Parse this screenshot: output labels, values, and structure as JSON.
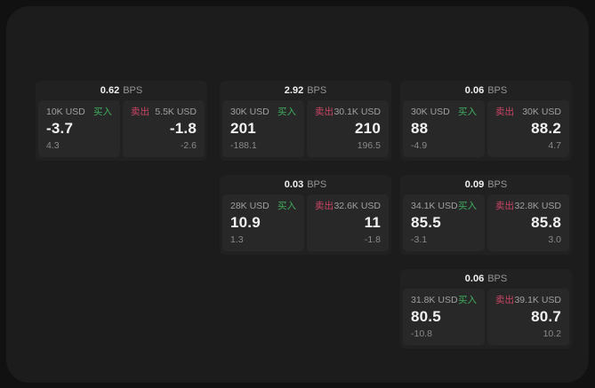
{
  "colors": {
    "page_bg": "#111111",
    "window_bg": "#1c1c1c",
    "card_bg": "#212121",
    "panel_bg": "#282828",
    "buy_green": "#3fae5e",
    "sell_red": "#cb4565"
  },
  "cards": [
    {
      "bps": "0.62",
      "unit": "BPS",
      "buy": {
        "amount": "10K USD",
        "label": "买入",
        "price": "-3.7",
        "change": "4.3"
      },
      "sell": {
        "label": "卖出",
        "amount": "5.5K USD",
        "price": "-1.8",
        "change": "-2.6"
      }
    },
    {
      "bps": "2.92",
      "unit": "BPS",
      "buy": {
        "amount": "30K USD",
        "label": "买入",
        "price": "201",
        "change": "-188.1"
      },
      "sell": {
        "label": "卖出",
        "amount": "30.1K USD",
        "price": "210",
        "change": "196.5"
      }
    },
    {
      "bps": "0.06",
      "unit": "BPS",
      "buy": {
        "amount": "30K USD",
        "label": "买入",
        "price": "88",
        "change": "-4.9"
      },
      "sell": {
        "label": "卖出",
        "amount": "30K USD",
        "price": "88.2",
        "change": "4.7"
      }
    },
    {
      "bps": "0.03",
      "unit": "BPS",
      "buy": {
        "amount": "28K USD",
        "label": "买入",
        "price": "10.9",
        "change": "1.3"
      },
      "sell": {
        "label": "卖出",
        "amount": "32.6K USD",
        "price": "11",
        "change": "-1.8"
      }
    },
    {
      "bps": "0.09",
      "unit": "BPS",
      "buy": {
        "amount": "34.1K USD",
        "label": "买入",
        "price": "85.5",
        "change": "-3.1"
      },
      "sell": {
        "label": "卖出",
        "amount": "32.8K USD",
        "price": "85.8",
        "change": "3.0"
      }
    },
    {
      "bps": "0.06",
      "unit": "BPS",
      "buy": {
        "amount": "31.8K USD",
        "label": "买入",
        "price": "80.5",
        "change": "-10.8"
      },
      "sell": {
        "label": "卖出",
        "amount": "39.1K USD",
        "price": "80.7",
        "change": "10.2"
      }
    }
  ]
}
